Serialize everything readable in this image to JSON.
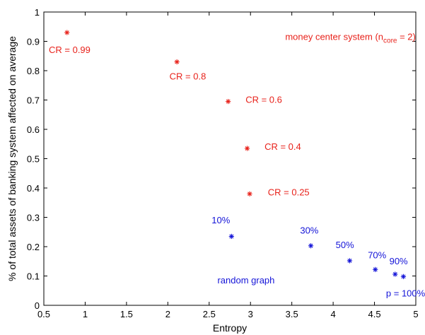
{
  "chart_data": {
    "type": "scatter",
    "xlabel": "Entropy",
    "ylabel": "% of total assets of banking system affected on average",
    "xlim": [
      0.5,
      5
    ],
    "ylim": [
      0,
      1
    ],
    "xticks": [
      "0.5",
      "1",
      "1.5",
      "2",
      "2.5",
      "3",
      "3.5",
      "4",
      "4.5",
      "5"
    ],
    "yticks": [
      "0",
      "0.1",
      "0.2",
      "0.3",
      "0.4",
      "0.5",
      "0.6",
      "0.7",
      "0.8",
      "0.9",
      "1"
    ],
    "grid": false,
    "series": [
      {
        "color": "#e8221b",
        "marker": "star",
        "points": [
          {
            "x": 0.78,
            "y": 0.93
          },
          {
            "x": 2.11,
            "y": 0.83
          },
          {
            "x": 2.73,
            "y": 0.695
          },
          {
            "x": 2.96,
            "y": 0.535
          },
          {
            "x": 2.99,
            "y": 0.38
          }
        ]
      },
      {
        "color": "#1414d8",
        "marker": "star",
        "points": [
          {
            "x": 2.77,
            "y": 0.235
          },
          {
            "x": 3.73,
            "y": 0.203
          },
          {
            "x": 4.2,
            "y": 0.152
          },
          {
            "x": 4.51,
            "y": 0.122
          },
          {
            "x": 4.75,
            "y": 0.106
          },
          {
            "x": 4.85,
            "y": 0.098
          }
        ]
      }
    ],
    "annotations": [
      {
        "text": "CR = 0.99",
        "color": "#e8221b",
        "x": 0.56,
        "y": 0.86
      },
      {
        "text": "CR = 0.8",
        "color": "#e8221b",
        "x": 2.02,
        "y": 0.77
      },
      {
        "text": "CR = 0.6",
        "color": "#e8221b",
        "x": 2.94,
        "y": 0.69
      },
      {
        "text": "CR = 0.4",
        "color": "#e8221b",
        "x": 3.17,
        "y": 0.53
      },
      {
        "text": "CR = 0.25",
        "color": "#e8221b",
        "x": 3.21,
        "y": 0.375
      },
      {
        "text": "10%",
        "color": "#1414d8",
        "x": 2.53,
        "y": 0.28
      },
      {
        "text": "30%",
        "color": "#1414d8",
        "x": 3.6,
        "y": 0.245
      },
      {
        "text": "50%",
        "color": "#1414d8",
        "x": 4.03,
        "y": 0.195
      },
      {
        "text": "70%",
        "color": "#1414d8",
        "x": 4.42,
        "y": 0.16
      },
      {
        "text": "90%",
        "color": "#1414d8",
        "x": 4.68,
        "y": 0.14
      },
      {
        "text": "random graph",
        "color": "#1414d8",
        "x": 2.6,
        "y": 0.075
      },
      {
        "text": "p = 100%",
        "color": "#1414d8",
        "x": 4.64,
        "y": 0.03
      }
    ],
    "system_label": {
      "color": "#e8221b",
      "x": 3.42,
      "y": 0.905,
      "prefix": "money center system (n",
      "sub": "core",
      "suffix": " = 2)"
    }
  }
}
